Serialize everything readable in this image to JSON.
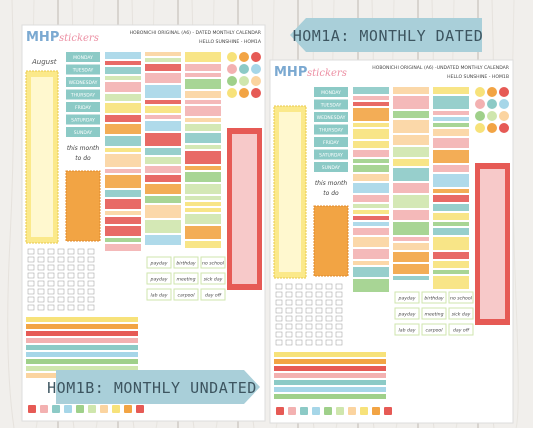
{
  "banners": {
    "top": "HOM1A: MONTHLY DATED",
    "bottom": "HOM1B: MONTHLY UNDATED"
  },
  "sheets": [
    {
      "logo": {
        "main": "MHP",
        "sub": "stickers"
      },
      "header": [
        "HOBONICHI ORIGINAL (A6) - DATED MONTHLY CALENDAR",
        "HELLO SUNSHINE - HOM1A"
      ],
      "month": "August",
      "weekdays": [
        "MONDAY",
        "TUESDAY",
        "WEDNESDAY",
        "THURSDAY",
        "FRIDAY",
        "SATURDAY",
        "SUNDAY"
      ],
      "todo": [
        "this month",
        "to do"
      ],
      "labels": [
        "payday",
        "birthday",
        "no school",
        "payday",
        "meeting",
        "sick day",
        "lab day",
        "carpool",
        "day off"
      ]
    },
    {
      "logo": {
        "main": "MHP",
        "sub": "stickers"
      },
      "header": [
        "HOBONICHI ORIGINAL (A6) -UNDATED MONTHLY CALENDAR",
        "HELLO SUNSHINE - HOM1B"
      ],
      "weekdays": [
        "MONDAY",
        "TUESDAY",
        "WEDNESDAY",
        "THURSDAY",
        "FRIDAY",
        "SATURDAY",
        "SUNDAY"
      ],
      "todo": [
        "this month",
        "to do"
      ],
      "labels": [
        "payday",
        "birthday",
        "no school",
        "payday",
        "meeting",
        "sick day",
        "lab day",
        "carpool",
        "day off"
      ]
    }
  ]
}
